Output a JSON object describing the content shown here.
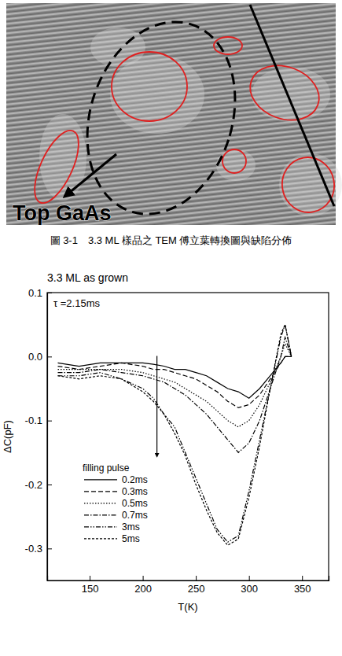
{
  "figure": {
    "label": "Top GaAs",
    "caption": "圖 3-1　3.3 ML 樣品之 TEM 傅立葉轉換圖與缺陷分佈"
  },
  "chart_data": {
    "type": "line",
    "title": "3.3 ML as grown",
    "x_label": "T(K)",
    "y_label": "ΔC(pF)",
    "annotations": [
      "τ =2.15ms"
    ],
    "legend_title": "filling pulse",
    "legend": "lower-left",
    "x": [
      120,
      140,
      160,
      180,
      200,
      210,
      220,
      230,
      240,
      250,
      260,
      270,
      280,
      290,
      300,
      310,
      320,
      330,
      334,
      340
    ],
    "series": [
      {
        "name": "0.2ms",
        "color": "#000000",
        "line_style": "solid",
        "values": [
          -0.01,
          -0.015,
          -0.01,
          -0.01,
          -0.01,
          -0.012,
          -0.015,
          -0.02,
          -0.02,
          -0.025,
          -0.03,
          -0.04,
          -0.05,
          -0.055,
          -0.065,
          -0.05,
          -0.03,
          -0.01,
          0.0,
          0.0
        ]
      },
      {
        "name": "0.3ms",
        "color": "#000000",
        "line_style": "dashed",
        "values": [
          -0.015,
          -0.02,
          -0.015,
          -0.01,
          -0.015,
          -0.02,
          -0.02,
          -0.025,
          -0.03,
          -0.035,
          -0.045,
          -0.055,
          -0.07,
          -0.08,
          -0.075,
          -0.06,
          -0.035,
          -0.01,
          0.0,
          0.0
        ]
      },
      {
        "name": "0.5ms",
        "color": "#000000",
        "line_style": "dotted",
        "values": [
          -0.02,
          -0.02,
          -0.02,
          -0.02,
          -0.025,
          -0.03,
          -0.035,
          -0.04,
          -0.05,
          -0.06,
          -0.07,
          -0.085,
          -0.1,
          -0.11,
          -0.1,
          -0.075,
          -0.04,
          0.0,
          0.02,
          0.0
        ]
      },
      {
        "name": "0.7ms",
        "color": "#000000",
        "line_style": "dashdot",
        "values": [
          -0.025,
          -0.025,
          -0.02,
          -0.025,
          -0.03,
          -0.035,
          -0.04,
          -0.05,
          -0.06,
          -0.075,
          -0.09,
          -0.11,
          -0.13,
          -0.15,
          -0.135,
          -0.1,
          -0.05,
          0.0,
          0.03,
          0.0
        ]
      },
      {
        "name": "3ms",
        "color": "#000000",
        "line_style": "dashdotdot",
        "values": [
          -0.03,
          -0.03,
          -0.025,
          -0.035,
          -0.05,
          -0.065,
          -0.09,
          -0.11,
          -0.15,
          -0.19,
          -0.23,
          -0.27,
          -0.29,
          -0.28,
          -0.21,
          -0.13,
          -0.05,
          0.03,
          0.05,
          0.0
        ]
      },
      {
        "name": "5ms",
        "color": "#000000",
        "line_style": "shortdash",
        "values": [
          -0.03,
          -0.035,
          -0.03,
          -0.035,
          -0.055,
          -0.07,
          -0.09,
          -0.12,
          -0.155,
          -0.2,
          -0.24,
          -0.275,
          -0.295,
          -0.285,
          -0.22,
          -0.14,
          -0.05,
          0.035,
          0.05,
          0.0
        ]
      }
    ],
    "xlim": [
      110,
      375
    ],
    "xticks": [
      150,
      200,
      250,
      300,
      350
    ],
    "ylim": [
      -0.35,
      0.1
    ],
    "yticks": [
      0.1,
      {
        "value": 0,
        "label": "0.0"
      },
      -0.1,
      -0.2,
      -0.3
    ]
  }
}
